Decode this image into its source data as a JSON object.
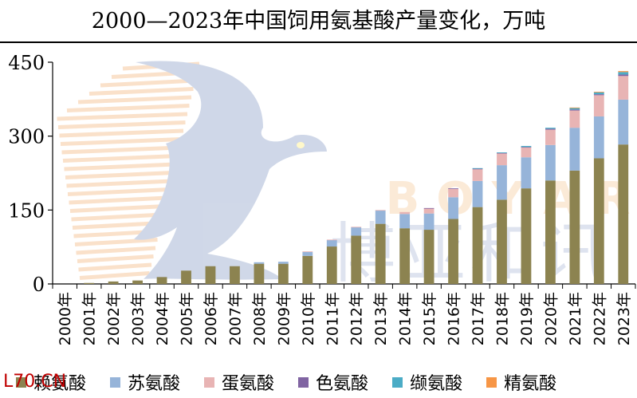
{
  "title": "2000—2023年中国饲用氨基酸产量变化，万吨",
  "watermark": {
    "letters": [
      "B",
      "O",
      "Y",
      "A",
      "R"
    ],
    "chinese": "博亚和讯",
    "icon": "bird-logo-watermark"
  },
  "source_mark": "L70.CN",
  "colors": {
    "lysine": "#8c8350",
    "threonine": "#96b4d9",
    "methionine": "#e8b4b4",
    "tryptophan": "#8064a2",
    "valine": "#4bacc6",
    "arginine": "#f79646"
  },
  "chart_data": {
    "type": "bar",
    "stacked": true,
    "title": "2000—2023年中国饲用氨基酸产量变化，万吨",
    "xlabel": "",
    "ylabel": "",
    "ylim": [
      0,
      450
    ],
    "yticks": [
      0,
      150,
      300,
      450
    ],
    "grid": false,
    "legend_position": "bottom",
    "categories": [
      "2000年",
      "2001年",
      "2002年",
      "2003年",
      "2004年",
      "2005年",
      "2006年",
      "2007年",
      "2008年",
      "2009年",
      "2010年",
      "2011年",
      "2012年",
      "2013年",
      "2014年",
      "2015年",
      "2016年",
      "2017年",
      "2018年",
      "2019年",
      "2020年",
      "2021年",
      "2022年",
      "2023年"
    ],
    "series": [
      {
        "name": "赖氨酸",
        "color": "#8c8350",
        "values": [
          0,
          2,
          5,
          7,
          14,
          27,
          36,
          36,
          41,
          41,
          57,
          76,
          98,
          122,
          113,
          110,
          132,
          156,
          171,
          194,
          210,
          230,
          255,
          283
        ]
      },
      {
        "name": "苏氨酸",
        "color": "#96b4d9",
        "values": [
          0,
          0,
          0,
          0,
          0,
          0,
          0,
          0,
          3,
          4,
          8,
          13,
          17,
          27,
          29,
          33,
          44,
          53,
          70,
          63,
          72,
          87,
          85,
          91
        ]
      },
      {
        "name": "蛋氨酸",
        "color": "#e8b4b4",
        "values": [
          0,
          0,
          0,
          0,
          0,
          0,
          0,
          0,
          0,
          0,
          1,
          1,
          1,
          1,
          4,
          10,
          17,
          24,
          24,
          20,
          31,
          35,
          43,
          48
        ]
      },
      {
        "name": "色氨酸",
        "color": "#8064a2",
        "values": [
          0,
          0,
          0,
          0,
          0,
          0,
          0,
          0,
          0,
          0,
          0,
          0,
          0,
          0,
          0,
          1,
          1,
          1,
          1,
          1,
          2,
          2,
          2,
          3
        ]
      },
      {
        "name": "缬氨酸",
        "color": "#4bacc6",
        "values": [
          0,
          0,
          0,
          0,
          0,
          0,
          0,
          0,
          0,
          0,
          0,
          0,
          0,
          0,
          0,
          0,
          0,
          1,
          1,
          2,
          2,
          3,
          4,
          5
        ]
      },
      {
        "name": "精氨酸",
        "color": "#f79646",
        "values": [
          0,
          0,
          0,
          0,
          0,
          0,
          0,
          0,
          0,
          0,
          0,
          0,
          0,
          0,
          0,
          0,
          0,
          0,
          0,
          0,
          0,
          1,
          1,
          2
        ]
      }
    ]
  }
}
